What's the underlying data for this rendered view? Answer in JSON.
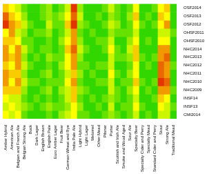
{
  "chart_data": {
    "type": "heatmap",
    "categories": [
      "Amber Hybrid",
      "American Ale",
      "Belgian and French Ale",
      "Belgian Strong Ale",
      "Bock",
      "Dark Lager",
      "English Brown",
      "English Pale",
      "Euro Amber Lager",
      "Fruit Beer",
      "German Wheat and Rye",
      "India Pale Ale",
      "Light Hybrid",
      "Light Lager",
      "Melomel",
      "Other Mead",
      "Pilsner",
      "Porter",
      "Scottish and Irish Ale",
      "Smoke and Wood Aged",
      "Sour Ale",
      "Specialty Beer",
      "Specialty Cider and Perry",
      "Specialty Mead",
      "Standard Cider and Perry",
      "Stout",
      "Strong Ale",
      "Traditional Mead"
    ],
    "rows": [
      "OSF2014",
      "OSF2013",
      "OSF2012",
      "OHSF2011",
      "OHSF2010",
      "NHC2014",
      "NHC2013",
      "NHC2012",
      "NHC2011",
      "NHC2010",
      "NHC2009",
      "INSF14",
      "INSF13",
      "CMI2014"
    ],
    "cells": [
      [
        0.4,
        0.5,
        0.6,
        0.8,
        0.9,
        0.9,
        0.8,
        0.7,
        0.9,
        0.8,
        0.6,
        0.1,
        0.7,
        0.9,
        0.9,
        0.9,
        0.8,
        0.6,
        0.8,
        0.9,
        0.8,
        0.5,
        0.9,
        0.9,
        0.8,
        0.5,
        0.4,
        0.9
      ],
      [
        0.2,
        0.4,
        0.5,
        0.7,
        0.9,
        0.9,
        0.8,
        0.7,
        0.8,
        0.7,
        0.5,
        0.2,
        0.6,
        0.9,
        0.9,
        0.8,
        0.9,
        0.7,
        0.8,
        0.9,
        0.7,
        0.4,
        0.9,
        0.8,
        0.9,
        0.4,
        0.5,
        0.9
      ],
      [
        0.1,
        0.3,
        0.4,
        0.6,
        0.8,
        0.9,
        0.9,
        0.6,
        0.8,
        0.8,
        0.4,
        0.1,
        0.7,
        0.8,
        0.9,
        0.9,
        0.8,
        0.6,
        0.7,
        0.9,
        0.8,
        0.5,
        0.8,
        0.9,
        0.8,
        0.5,
        0.3,
        0.9
      ],
      [
        0.5,
        0.3,
        0.6,
        0.7,
        0.9,
        0.8,
        0.8,
        0.7,
        0.9,
        0.8,
        0.6,
        0.3,
        0.8,
        0.9,
        0.8,
        0.9,
        0.9,
        0.7,
        0.8,
        0.8,
        0.8,
        0.6,
        0.9,
        0.9,
        0.9,
        0.6,
        0.6,
        0.8
      ],
      [
        0.4,
        0.4,
        0.5,
        0.8,
        0.8,
        0.9,
        0.9,
        0.8,
        0.9,
        0.7,
        0.5,
        0.3,
        0.7,
        0.9,
        0.9,
        0.8,
        0.8,
        0.6,
        0.9,
        0.9,
        0.7,
        0.5,
        0.9,
        0.8,
        0.9,
        0.5,
        0.5,
        0.9
      ],
      [
        0.3,
        0.5,
        0.3,
        0.6,
        0.8,
        0.9,
        0.8,
        0.8,
        0.9,
        0.8,
        0.4,
        0.2,
        0.6,
        0.8,
        0.9,
        0.9,
        0.8,
        0.5,
        0.8,
        0.9,
        0.6,
        0.4,
        0.9,
        0.9,
        0.9,
        0.3,
        0.3,
        0.9
      ],
      [
        0.3,
        0.4,
        0.3,
        0.7,
        0.9,
        0.8,
        0.9,
        0.7,
        0.8,
        0.8,
        0.5,
        0.3,
        0.7,
        0.9,
        0.9,
        0.9,
        0.9,
        0.6,
        0.8,
        0.8,
        0.7,
        0.4,
        0.8,
        0.9,
        0.8,
        0.3,
        0.2,
        0.9
      ],
      [
        0.4,
        0.5,
        0.3,
        0.6,
        0.8,
        0.9,
        0.9,
        0.8,
        0.9,
        0.7,
        0.5,
        0.3,
        0.8,
        0.8,
        0.9,
        0.8,
        0.8,
        0.6,
        0.9,
        0.9,
        0.8,
        0.5,
        0.9,
        0.8,
        0.9,
        0.2,
        0.3,
        0.8
      ],
      [
        0.3,
        0.4,
        0.4,
        0.7,
        0.9,
        0.9,
        0.8,
        0.7,
        0.9,
        0.8,
        0.6,
        0.4,
        0.7,
        0.9,
        0.8,
        0.9,
        0.9,
        0.5,
        0.8,
        0.9,
        0.7,
        0.5,
        0.9,
        0.9,
        0.9,
        0.2,
        0.3,
        0.9
      ],
      [
        0.3,
        0.5,
        0.3,
        0.6,
        0.8,
        0.8,
        0.9,
        0.8,
        0.8,
        0.8,
        0.5,
        0.3,
        0.8,
        0.9,
        0.9,
        0.8,
        0.8,
        0.6,
        0.9,
        0.8,
        0.8,
        0.4,
        0.8,
        0.9,
        0.8,
        0.1,
        0.2,
        0.9
      ],
      [
        0.4,
        0.4,
        0.4,
        0.7,
        0.9,
        0.9,
        0.8,
        0.7,
        0.9,
        0.7,
        0.6,
        0.4,
        0.7,
        0.8,
        0.9,
        0.9,
        0.9,
        0.6,
        0.8,
        0.9,
        0.7,
        0.5,
        0.9,
        0.8,
        0.9,
        0.3,
        0.3,
        0.8
      ],
      [
        0.5,
        0.6,
        0.6,
        0.8,
        0.9,
        0.8,
        0.9,
        0.8,
        0.9,
        0.8,
        0.6,
        0.4,
        0.8,
        0.9,
        0.8,
        0.9,
        0.8,
        0.7,
        0.8,
        0.9,
        0.8,
        0.6,
        0.9,
        0.9,
        0.8,
        0.4,
        0.5,
        0.9
      ],
      [
        0.6,
        0.5,
        0.6,
        0.7,
        0.8,
        0.9,
        0.8,
        0.7,
        0.8,
        0.8,
        0.7,
        0.5,
        0.7,
        0.9,
        0.9,
        0.8,
        0.9,
        0.6,
        0.9,
        0.8,
        0.8,
        0.5,
        0.8,
        0.9,
        0.9,
        0.5,
        0.6,
        0.8
      ],
      [
        0.5,
        0.6,
        0.5,
        0.8,
        0.9,
        0.9,
        0.9,
        0.8,
        0.9,
        0.7,
        0.6,
        0.5,
        0.8,
        0.8,
        0.9,
        0.9,
        0.8,
        0.7,
        0.8,
        0.9,
        0.8,
        0.6,
        0.9,
        0.8,
        0.9,
        0.6,
        0.6,
        0.9
      ]
    ],
    "value_range": [
      0,
      1
    ]
  }
}
